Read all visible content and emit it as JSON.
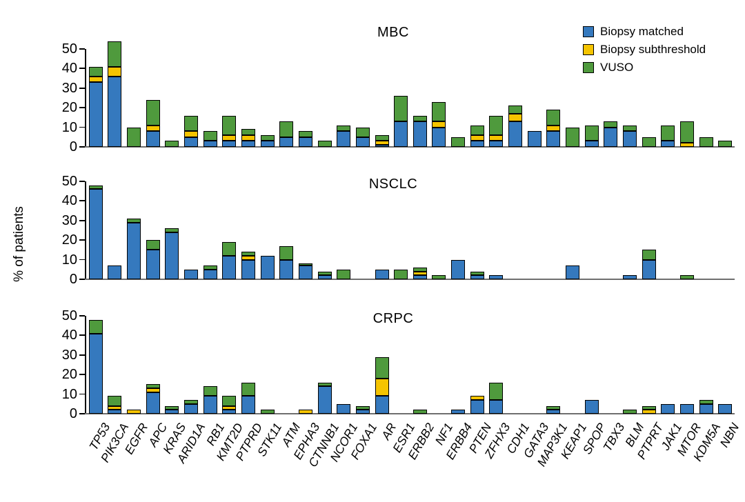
{
  "figure": {
    "ylabel": "% of patients",
    "legend": [
      {
        "label": "Biopsy matched",
        "color": "#3579be"
      },
      {
        "label": "Biopsy subthreshold",
        "color": "#f5c400"
      },
      {
        "label": "VUSO",
        "color": "#4f9a3d"
      }
    ]
  },
  "chart_data": [
    {
      "type": "bar",
      "stacked": true,
      "title": "MBC",
      "ylabel": "% of patients",
      "ylim": [
        0,
        55
      ],
      "yticks": [
        0,
        10,
        20,
        30,
        40,
        50
      ],
      "grid": false,
      "legend_position": "top-right",
      "categories": [
        "TP53",
        "PIK3CA",
        "EGFR",
        "APC",
        "KRAS",
        "ARID1A",
        "RB1",
        "KMT2D",
        "PTPRD",
        "STK11",
        "ATM",
        "EPHA3",
        "CTNNB1",
        "NCOR1",
        "FOXA1",
        "AR",
        "ESR1",
        "ERBB2",
        "NF1",
        "ERBB4",
        "PTEN",
        "ZFHX3",
        "CDH1",
        "GATA3",
        "MAP3K1",
        "KEAP1",
        "SPOP",
        "TBX3",
        "BLM",
        "PTPRT",
        "JAK1",
        "MTOR",
        "KDM5A",
        "NBN"
      ],
      "series": [
        {
          "name": "Biopsy matched",
          "color": "#3579be",
          "values": [
            33,
            36,
            0,
            8,
            0,
            5,
            3,
            3,
            3,
            3,
            5,
            5,
            0,
            8,
            5,
            1,
            13,
            13,
            10,
            0,
            3,
            3,
            13,
            8,
            8,
            0,
            3,
            10,
            8,
            0,
            3,
            0,
            0,
            0
          ]
        },
        {
          "name": "Biopsy subthreshold",
          "color": "#f5c400",
          "values": [
            3,
            5,
            0,
            3,
            0,
            3,
            0,
            3,
            3,
            0,
            0,
            0,
            0,
            0,
            0,
            2,
            0,
            0,
            3,
            0,
            3,
            3,
            4,
            0,
            3,
            0,
            0,
            0,
            0,
            0,
            0,
            2,
            0,
            0
          ]
        },
        {
          "name": "VUSO",
          "color": "#4f9a3d",
          "values": [
            5,
            13,
            10,
            13,
            3,
            8,
            5,
            10,
            3,
            3,
            8,
            3,
            3,
            3,
            5,
            3,
            13,
            3,
            10,
            5,
            5,
            10,
            4,
            0,
            8,
            10,
            8,
            3,
            3,
            5,
            8,
            11,
            5,
            3
          ]
        }
      ]
    },
    {
      "type": "bar",
      "stacked": true,
      "title": "NSCLC",
      "ylabel": "% of patients",
      "ylim": [
        0,
        50
      ],
      "yticks": [
        0,
        10,
        20,
        30,
        40,
        50
      ],
      "grid": false,
      "categories": [
        "TP53",
        "PIK3CA",
        "EGFR",
        "APC",
        "KRAS",
        "ARID1A",
        "RB1",
        "KMT2D",
        "PTPRD",
        "STK11",
        "ATM",
        "EPHA3",
        "CTNNB1",
        "NCOR1",
        "FOXA1",
        "AR",
        "ESR1",
        "ERBB2",
        "NF1",
        "ERBB4",
        "PTEN",
        "ZFHX3",
        "CDH1",
        "GATA3",
        "MAP3K1",
        "KEAP1",
        "SPOP",
        "TBX3",
        "BLM",
        "PTPRT",
        "JAK1",
        "MTOR",
        "KDM5A",
        "NBN"
      ],
      "series": [
        {
          "name": "Biopsy matched",
          "color": "#3579be",
          "values": [
            46,
            7,
            29,
            15,
            24,
            5,
            5,
            12,
            10,
            12,
            10,
            7,
            2,
            0,
            0,
            5,
            0,
            2,
            0,
            10,
            2,
            2,
            0,
            0,
            0,
            7,
            0,
            0,
            2,
            10,
            0,
            0,
            0,
            0
          ]
        },
        {
          "name": "Biopsy subthreshold",
          "color": "#f5c400",
          "values": [
            0,
            0,
            0,
            0,
            0,
            0,
            0,
            0,
            2,
            0,
            0,
            0,
            0,
            0,
            0,
            0,
            0,
            2,
            0,
            0,
            0,
            0,
            0,
            0,
            0,
            0,
            0,
            0,
            0,
            0,
            0,
            0,
            0,
            0
          ]
        },
        {
          "name": "VUSO",
          "color": "#4f9a3d",
          "values": [
            2,
            0,
            2,
            5,
            2,
            0,
            2,
            7,
            2,
            0,
            7,
            1,
            2,
            5,
            0,
            0,
            5,
            2,
            2,
            0,
            2,
            0,
            0,
            0,
            0,
            0,
            0,
            0,
            0,
            5,
            0,
            2,
            0,
            0
          ]
        }
      ]
    },
    {
      "type": "bar",
      "stacked": true,
      "title": "CRPC",
      "ylabel": "% of patients",
      "ylim": [
        0,
        50
      ],
      "yticks": [
        0,
        10,
        20,
        30,
        40,
        50
      ],
      "grid": false,
      "categories": [
        "TP53",
        "PIK3CA",
        "EGFR",
        "APC",
        "KRAS",
        "ARID1A",
        "RB1",
        "KMT2D",
        "PTPRD",
        "STK11",
        "ATM",
        "EPHA3",
        "CTNNB1",
        "NCOR1",
        "FOXA1",
        "AR",
        "ESR1",
        "ERBB2",
        "NF1",
        "ERBB4",
        "PTEN",
        "ZFHX3",
        "CDH1",
        "GATA3",
        "MAP3K1",
        "KEAP1",
        "SPOP",
        "TBX3",
        "BLM",
        "PTPRT",
        "JAK1",
        "MTOR",
        "KDM5A",
        "NBN"
      ],
      "series": [
        {
          "name": "Biopsy matched",
          "color": "#3579be",
          "values": [
            41,
            2,
            0,
            11,
            2,
            5,
            9,
            2,
            9,
            0,
            0,
            0,
            14,
            5,
            2,
            9,
            0,
            0,
            0,
            2,
            7,
            7,
            0,
            0,
            2,
            0,
            7,
            0,
            0,
            0,
            5,
            5,
            5,
            5
          ]
        },
        {
          "name": "Biopsy subthreshold",
          "color": "#f5c400",
          "values": [
            0,
            2,
            2,
            2,
            0,
            0,
            0,
            2,
            0,
            0,
            0,
            2,
            0,
            0,
            0,
            9,
            0,
            0,
            0,
            0,
            2,
            0,
            0,
            0,
            0,
            0,
            0,
            0,
            0,
            2,
            0,
            0,
            0,
            0
          ]
        },
        {
          "name": "VUSO",
          "color": "#4f9a3d",
          "values": [
            7,
            5,
            0,
            2,
            2,
            2,
            5,
            5,
            7,
            2,
            0,
            0,
            2,
            0,
            2,
            11,
            0,
            2,
            0,
            0,
            0,
            9,
            0,
            0,
            2,
            0,
            0,
            0,
            2,
            2,
            0,
            0,
            2,
            0
          ]
        }
      ]
    }
  ]
}
